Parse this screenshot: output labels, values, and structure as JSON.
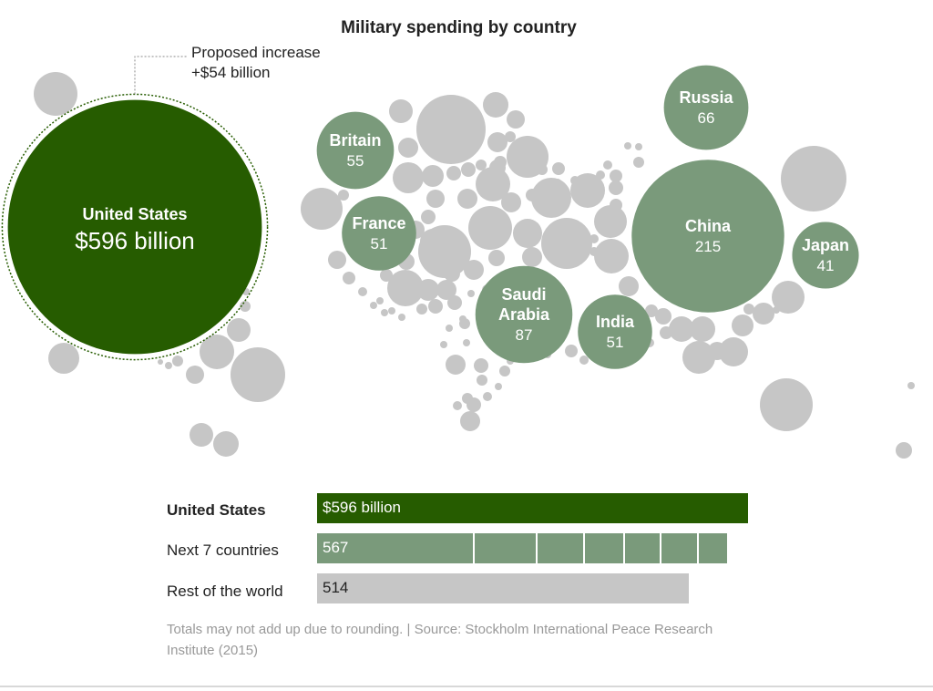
{
  "chart_data": [
    {
      "type": "bubble",
      "title": "Military spending by country",
      "unit": "billion",
      "annotation": {
        "line1": "Proposed increase",
        "line2": "+$54 billion",
        "value": 54
      },
      "highlighted": [
        {
          "name": "United States",
          "label": "$596 billion",
          "value": 596
        },
        {
          "name": "Russia",
          "label": "66",
          "value": 66
        },
        {
          "name": "Britain",
          "label": "55",
          "value": 55
        },
        {
          "name": "France",
          "label": "51",
          "value": 51
        },
        {
          "name": "China",
          "label": "215",
          "value": 215
        },
        {
          "name": "Japan",
          "label": "41",
          "value": 41
        },
        {
          "name": "Saudi Arabia",
          "label": "87",
          "value": 87
        },
        {
          "name": "India",
          "label": "51",
          "value": 51
        }
      ]
    },
    {
      "type": "bar",
      "categories": [
        "United States",
        "Next 7 countries",
        "Rest of the world"
      ],
      "values": [
        596,
        567,
        514
      ],
      "value_labels": [
        "$596 billion",
        "567",
        "514"
      ],
      "next7_breakdown": [
        215,
        87,
        66,
        55,
        51,
        51,
        41
      ]
    }
  ],
  "colors": {
    "us": "#265c00",
    "top": "#7a9a7b",
    "rest": "#c6c6c6",
    "text_light": "#ffffff",
    "text_dark": "#222222"
  },
  "footnote": "Totals may not add up due to rounding. | Source: Stockholm International Peace Research Institute (2015)"
}
